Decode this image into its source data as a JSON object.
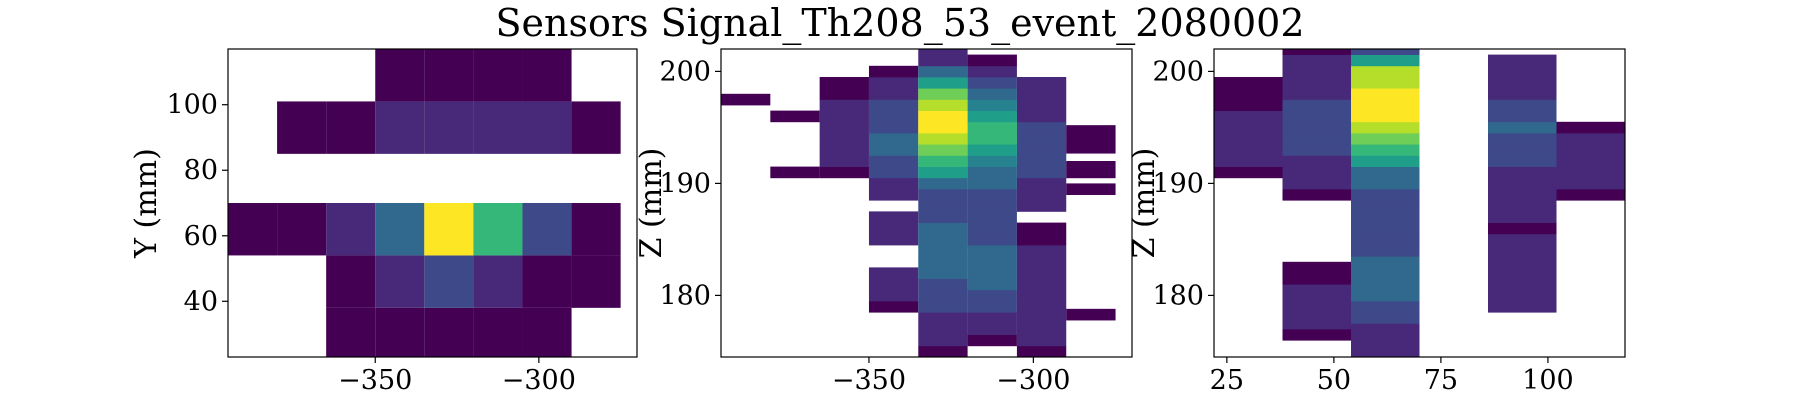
{
  "figure_title": "Sensors Signal_Th208_53_event_2080002",
  "colormap": [
    "#440154",
    "#482878",
    "#3e4989",
    "#31688e",
    "#26828e",
    "#1f9e89",
    "#35b779",
    "#6ece58",
    "#b5de2b",
    "#fde725"
  ],
  "chart_data": [
    {
      "type": "heatmap",
      "name": "xy",
      "title": "",
      "xlabel": "",
      "ylabel": "Y (mm)",
      "xlim": [
        -395,
        -270
      ],
      "ylim": [
        23,
        117
      ],
      "xticks": [
        -350,
        -300
      ],
      "yticks": [
        40,
        60,
        80,
        100
      ],
      "xtick_labels": [
        "−350",
        "−300"
      ],
      "ytick_labels": [
        "40",
        "60",
        "80",
        "100"
      ],
      "cells": [
        [
          -365,
          -350,
          23,
          38,
          0.05
        ],
        [
          -350,
          -335,
          23,
          38,
          0.05
        ],
        [
          -335,
          -320,
          23,
          38,
          0.05
        ],
        [
          -320,
          -305,
          23,
          38,
          0.05
        ],
        [
          -305,
          -290,
          23,
          38,
          0.05
        ],
        [
          -365,
          -350,
          38,
          54,
          0.05
        ],
        [
          -350,
          -335,
          38,
          54,
          0.12
        ],
        [
          -335,
          -320,
          38,
          54,
          0.2
        ],
        [
          -320,
          -305,
          38,
          54,
          0.12
        ],
        [
          -305,
          -290,
          38,
          54,
          0.05
        ],
        [
          -290,
          -275,
          38,
          54,
          0.05
        ],
        [
          -395,
          -380,
          54,
          70,
          0.05
        ],
        [
          -380,
          -365,
          54,
          70,
          0.05
        ],
        [
          -365,
          -350,
          54,
          70,
          0.1
        ],
        [
          -350,
          -335,
          54,
          70,
          0.35
        ],
        [
          -335,
          -320,
          54,
          70,
          1.0
        ],
        [
          -320,
          -305,
          54,
          70,
          0.7
        ],
        [
          -305,
          -290,
          54,
          70,
          0.22
        ],
        [
          -290,
          -275,
          54,
          70,
          0.05
        ],
        [
          -380,
          -365,
          85,
          101,
          0.05
        ],
        [
          -365,
          -350,
          85,
          101,
          0.05
        ],
        [
          -350,
          -335,
          85,
          101,
          0.08
        ],
        [
          -335,
          -320,
          85,
          101,
          0.15
        ],
        [
          -320,
          -305,
          85,
          101,
          0.12
        ],
        [
          -305,
          -290,
          85,
          101,
          0.06
        ],
        [
          -290,
          -275,
          85,
          101,
          0.05
        ],
        [
          -350,
          -335,
          101,
          117,
          0.04
        ],
        [
          -335,
          -320,
          101,
          117,
          0.05
        ],
        [
          -320,
          -305,
          101,
          117,
          0.05
        ],
        [
          -305,
          -290,
          101,
          117,
          0.04
        ]
      ]
    },
    {
      "type": "heatmap",
      "name": "xz",
      "title": "",
      "xlabel": "",
      "ylabel": "Z (mm)",
      "xlim": [
        -395,
        -270
      ],
      "ylim": [
        174.5,
        202
      ],
      "xticks": [
        -350,
        -300
      ],
      "yticks": [
        180,
        190,
        200
      ],
      "xtick_labels": [
        "−350",
        "−300"
      ],
      "ytick_labels": [
        "180",
        "190",
        "200"
      ],
      "columns": [
        {
          "x0": -350,
          "x1": -335,
          "start": 178.5,
          "step": 1,
          "values": [
            0.05,
            0.06,
            0.07,
            0.08,
            0.0,
            0.0,
            0.07,
            0.08,
            0.08,
            0.0,
            0.12,
            0.15,
            0.2,
            0.25,
            0.28,
            0.3,
            0.27,
            0.22,
            0.18,
            0.12,
            0.08,
            0.05
          ]
        },
        {
          "x0": -335,
          "x1": -320,
          "start": 174.5,
          "step": 1,
          "values": [
            0.05,
            0.08,
            0.12,
            0.16,
            0.2,
            0.22,
            0.25,
            0.28,
            0.3,
            0.32,
            0.3,
            0.28,
            0.25,
            0.22,
            0.25,
            0.35,
            0.5,
            0.65,
            0.8,
            0.9,
            0.95,
            0.98,
            0.9,
            0.75,
            0.55,
            0.3,
            0.12,
            0.06
          ]
        },
        {
          "x0": -320,
          "x1": -305,
          "start": 175.5,
          "step": 1,
          "values": [
            0.05,
            0.1,
            0.15,
            0.2,
            0.25,
            0.3,
            0.32,
            0.3,
            0.28,
            0.25,
            0.22,
            0.2,
            0.22,
            0.25,
            0.3,
            0.38,
            0.48,
            0.6,
            0.7,
            0.68,
            0.55,
            0.4,
            0.28,
            0.18,
            0.1,
            0.05
          ]
        },
        {
          "x0": -305,
          "x1": -290,
          "start": 174.5,
          "step": 1,
          "values": [
            0.05,
            0.08,
            0.1,
            0.12,
            0.14,
            0.13,
            0.12,
            0.1,
            0.08,
            0.06,
            0.05,
            0.05,
            0.0,
            0.08,
            0.12,
            0.15,
            0.18,
            0.2,
            0.22,
            0.2,
            0.18,
            0.15,
            0.12,
            0.1,
            0.08
          ]
        },
        {
          "x0": -365,
          "x1": -350,
          "start": 190.5,
          "step": 1,
          "values": [
            0.05,
            0.08,
            0.12,
            0.14,
            0.12,
            0.1,
            0.08,
            0.05,
            0.04
          ]
        },
        {
          "x0": -380,
          "x1": -365,
          "start": 190.5,
          "step": 1,
          "values": [
            0.05
          ]
        },
        {
          "x0": -380,
          "x1": -365,
          "start": 195.5,
          "step": 1,
          "values": [
            0.05
          ]
        },
        {
          "x0": -395,
          "x1": -380,
          "start": 197,
          "step": 1,
          "values": [
            0.05
          ]
        },
        {
          "x0": -290,
          "x1": -275,
          "start": 177.8,
          "step": 1,
          "values": [
            0.05
          ]
        },
        {
          "x0": -290,
          "x1": -275,
          "start": 189,
          "step": 1,
          "values": [
            0.05
          ]
        },
        {
          "x0": -290,
          "x1": -275,
          "start": 190.5,
          "step": 1.5,
          "values": [
            0.05
          ]
        },
        {
          "x0": -290,
          "x1": -275,
          "start": 192.7,
          "step": 2.5,
          "values": [
            0.05
          ]
        }
      ]
    },
    {
      "type": "heatmap",
      "name": "yz",
      "title": "",
      "xlabel": "",
      "ylabel": "Z (mm)",
      "xlim": [
        22,
        118
      ],
      "ylim": [
        174.5,
        202
      ],
      "xticks": [
        25,
        50,
        75,
        100
      ],
      "yticks": [
        180,
        190,
        200
      ],
      "xtick_labels": [
        "25",
        "50",
        "75",
        "100"
      ],
      "ytick_labels": [
        "180",
        "190",
        "200"
      ],
      "columns": [
        {
          "x0": 22,
          "x1": 38,
          "start": 190.5,
          "step": 1,
          "values": [
            0.05,
            0.07,
            0.09,
            0.1,
            0.09,
            0.07,
            0.05,
            0.04,
            0.05
          ]
        },
        {
          "x0": 38,
          "x1": 54,
          "start": 176,
          "step": 1,
          "values": [
            0.05,
            0.06,
            0.08,
            0.07,
            0.06,
            0.05,
            0.05
          ]
        },
        {
          "x0": 38,
          "x1": 54,
          "start": 188.5,
          "step": 1,
          "values": [
            0.05,
            0.08,
            0.12,
            0.16,
            0.2,
            0.24,
            0.26,
            0.24,
            0.2,
            0.16,
            0.12,
            0.08,
            0.06,
            0.05
          ]
        },
        {
          "x0": 54,
          "x1": 70,
          "start": 174.5,
          "step": 1,
          "values": [
            0.06,
            0.1,
            0.14,
            0.18,
            0.22,
            0.28,
            0.32,
            0.3,
            0.28,
            0.24,
            0.22,
            0.2,
            0.2,
            0.22,
            0.26,
            0.3,
            0.38,
            0.5,
            0.62,
            0.75,
            0.88,
            0.96,
            1.0,
            0.98,
            0.92,
            0.85,
            0.6,
            0.2
          ]
        },
        {
          "x0": 86,
          "x1": 102,
          "start": 178.5,
          "step": 1,
          "values": [
            0.06,
            0.08,
            0.1,
            0.12,
            0.1,
            0.08,
            0.06,
            0.05,
            0.06,
            0.08,
            0.1,
            0.12,
            0.14,
            0.18,
            0.22,
            0.26,
            0.28,
            0.24,
            0.2,
            0.16,
            0.12,
            0.08,
            0.06
          ]
        },
        {
          "x0": 102,
          "x1": 118,
          "start": 188.5,
          "step": 1,
          "values": [
            0.05,
            0.07,
            0.09,
            0.1,
            0.09,
            0.07,
            0.05
          ]
        }
      ]
    }
  ]
}
